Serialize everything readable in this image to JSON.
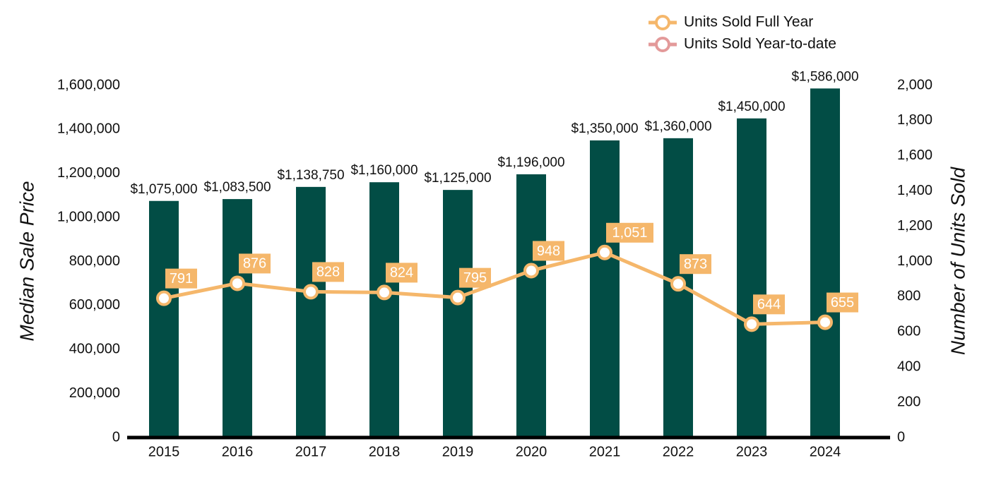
{
  "chart_data": {
    "type": "bar-line",
    "categories": [
      "2015",
      "2016",
      "2017",
      "2018",
      "2019",
      "2020",
      "2021",
      "2022",
      "2023",
      "2024"
    ],
    "ylabel": "Median Sale Price",
    "y2label": "Number of Units Sold",
    "ylim": [
      0,
      1600000
    ],
    "yticks": [
      0,
      {
        "value": 200000,
        "label": "200,000"
      },
      {
        "value": 400000,
        "label": "400,000"
      },
      {
        "value": 600000,
        "label": "600,000"
      },
      {
        "value": 800000,
        "label": "800,000"
      },
      {
        "value": 1000000,
        "label": "1,000,000"
      },
      {
        "value": 1200000,
        "label": "1,200,000"
      },
      {
        "value": 1400000,
        "label": "1,400,000"
      },
      {
        "value": 1600000,
        "label": "1,600,000"
      }
    ],
    "y2lim": [
      0,
      2000
    ],
    "y2ticks": [
      0,
      200,
      400,
      600,
      800,
      {
        "value": 1000,
        "label": "1,000"
      },
      {
        "value": 1200,
        "label": "1,200"
      },
      {
        "value": 1400,
        "label": "1,400"
      },
      {
        "value": 1600,
        "label": "1,600"
      },
      {
        "value": 1800,
        "label": "1,800"
      },
      {
        "value": 2000,
        "label": "2,000"
      }
    ],
    "bars": {
      "color": "#024d45",
      "values": [
        1075000,
        1083500,
        1138750,
        1160000,
        1125000,
        1196000,
        1350000,
        1360000,
        1450000,
        1586000
      ],
      "value_labels": [
        "$1,075,000",
        "$1,083,500",
        "$1,138,750",
        "$1,160,000",
        "$1,125,000",
        "$1,196,000",
        "$1,350,000",
        "$1,360,000",
        "$1,450,000",
        "$1,586,000"
      ]
    },
    "series": [
      {
        "name": "Units Sold Full Year",
        "color": "#f5b76b",
        "axis": "y2",
        "values": [
          791,
          876,
          828,
          824,
          795,
          948,
          1051,
          873,
          644,
          655
        ],
        "value_labels": [
          "791",
          "876",
          "828",
          "824",
          "795",
          "948",
          "1,051",
          "873",
          "644",
          "655"
        ]
      },
      {
        "name": "Units Sold Year-to-date",
        "color": "#e39a9a",
        "axis": "y2",
        "values": [
          null,
          null,
          null,
          null,
          null,
          null,
          null,
          null,
          null,
          null
        ]
      }
    ]
  }
}
